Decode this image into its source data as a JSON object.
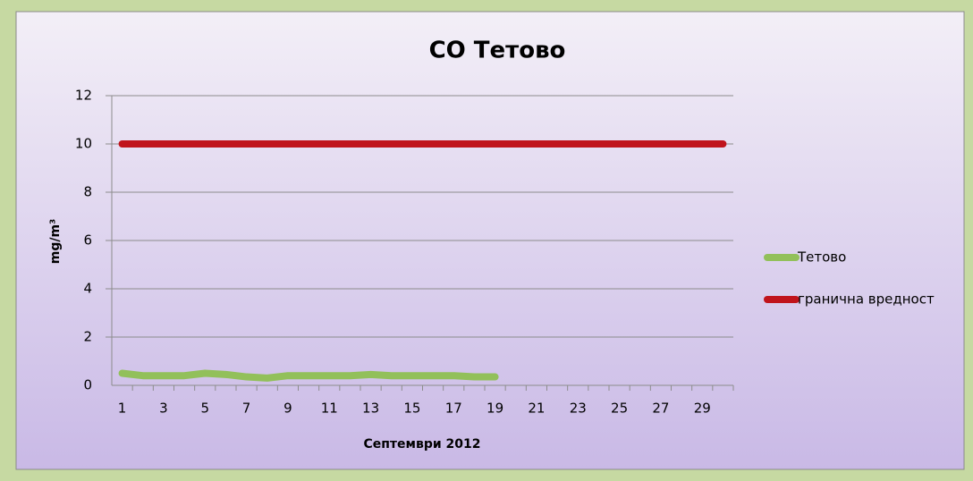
{
  "chart_data": {
    "type": "line",
    "title": "CO Тетово",
    "y_label": "mg/m³",
    "x_label": "Септември 2012",
    "categories": [
      1,
      null,
      3,
      null,
      5,
      null,
      7,
      null,
      9,
      null,
      11,
      null,
      13,
      null,
      15,
      null,
      17,
      null,
      19,
      null,
      21,
      null,
      23,
      null,
      25,
      null,
      27,
      null,
      29,
      null
    ],
    "series": [
      {
        "name": "Тетово",
        "color": "#92c05a",
        "values": [
          0.5,
          0.4,
          0.4,
          0.4,
          0.5,
          0.45,
          0.35,
          0.3,
          0.4,
          0.4,
          0.4,
          0.4,
          0.45,
          0.4,
          0.4,
          0.4,
          0.4,
          0.35,
          0.35,
          null,
          null,
          null,
          null,
          null,
          null,
          null,
          null,
          null,
          null,
          null
        ]
      },
      {
        "name": "гранична вредност",
        "color": "#c0141c",
        "values": [
          10,
          10,
          10,
          10,
          10,
          10,
          10,
          10,
          10,
          10,
          10,
          10,
          10,
          10,
          10,
          10,
          10,
          10,
          10,
          10,
          10,
          10,
          10,
          10,
          10,
          10,
          10,
          10,
          10,
          10
        ]
      }
    ],
    "ylim": [
      0,
      12
    ],
    "yticks": [
      0,
      2,
      4,
      6,
      8,
      10,
      12
    ],
    "grid": true,
    "legend": "right"
  }
}
